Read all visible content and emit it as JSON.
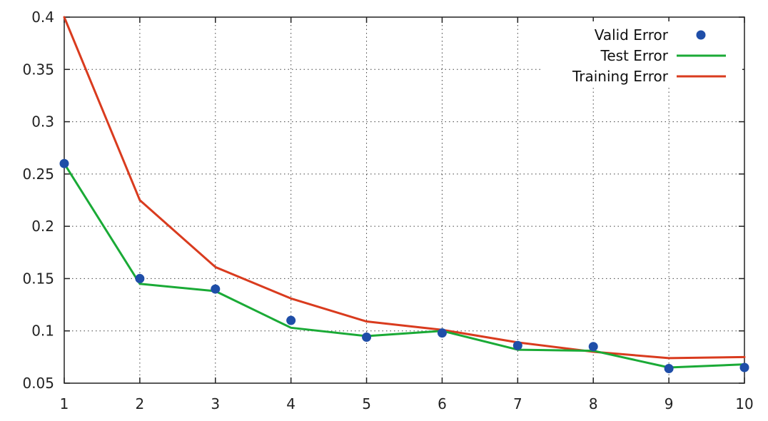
{
  "chart_data": {
    "type": "line",
    "title": "",
    "xlabel": "",
    "ylabel": "",
    "x": [
      1,
      2,
      3,
      4,
      5,
      6,
      7,
      8,
      9,
      10
    ],
    "xlim": [
      1,
      10
    ],
    "ylim": [
      0.05,
      0.4
    ],
    "x_ticks": [
      "1",
      "2",
      "3",
      "4",
      "5",
      "6",
      "7",
      "8",
      "9",
      "10"
    ],
    "y_ticks": [
      "0.05",
      "0.1",
      "0.15",
      "0.2",
      "0.25",
      "0.3",
      "0.35",
      "0.4"
    ],
    "grid": true,
    "legend_position": "top-right",
    "series": [
      {
        "name": "Valid Error",
        "style": "points",
        "color": "#1f4ea8",
        "values": [
          0.26,
          0.15,
          0.14,
          0.11,
          0.094,
          0.098,
          0.086,
          0.085,
          0.064,
          0.065
        ]
      },
      {
        "name": "Test Error",
        "style": "line",
        "color": "#1aaa36",
        "values": [
          0.26,
          0.145,
          0.138,
          0.103,
          0.095,
          0.1,
          0.082,
          0.081,
          0.065,
          0.068
        ]
      },
      {
        "name": "Training Error",
        "style": "line",
        "color": "#d93b1e",
        "values": [
          0.4,
          0.225,
          0.161,
          0.131,
          0.109,
          0.101,
          0.089,
          0.08,
          0.074,
          0.075
        ]
      }
    ]
  }
}
